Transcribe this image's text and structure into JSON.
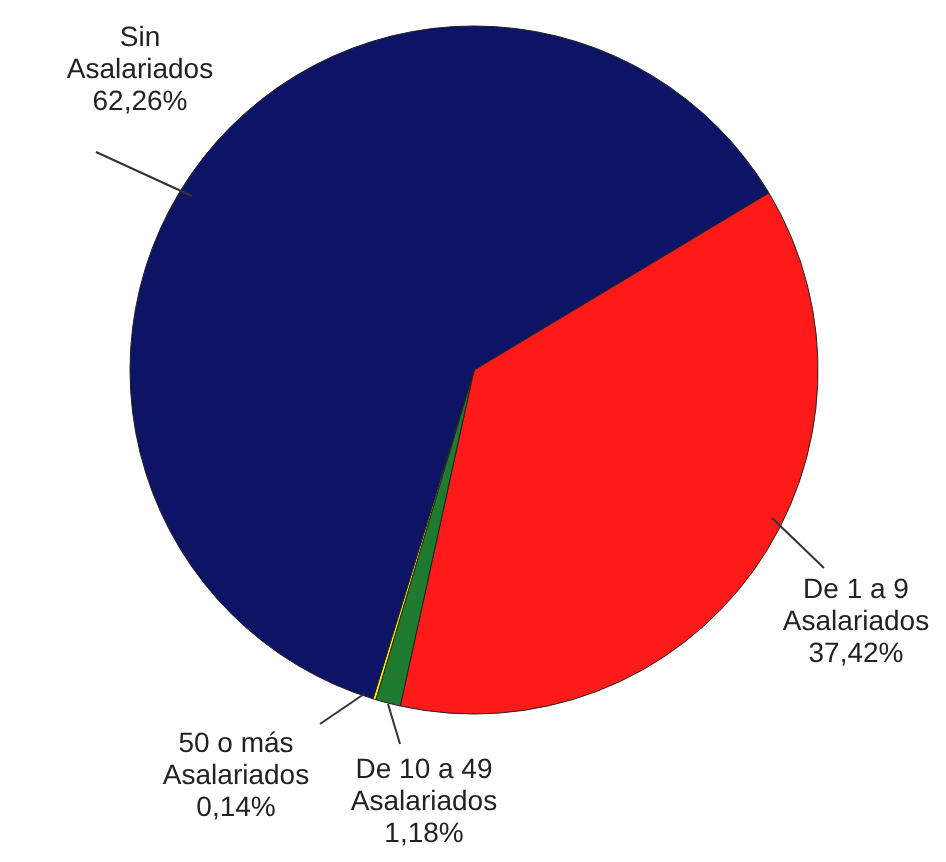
{
  "chart_data": {
    "type": "pie",
    "categories": [
      "De 1 a 9 Asalariados",
      "De 10 a 49 Asalariados",
      "50 o más Asalariados",
      "Sin Asalariados"
    ],
    "values": [
      37.42,
      1.18,
      0.14,
      62.26
    ],
    "value_labels": [
      "37,42%",
      "1,18%",
      "0,14%",
      "62,26%"
    ],
    "colors": [
      "#ff1a1a",
      "#1e7a2e",
      "#f5f000",
      "#0d1466"
    ]
  }
}
